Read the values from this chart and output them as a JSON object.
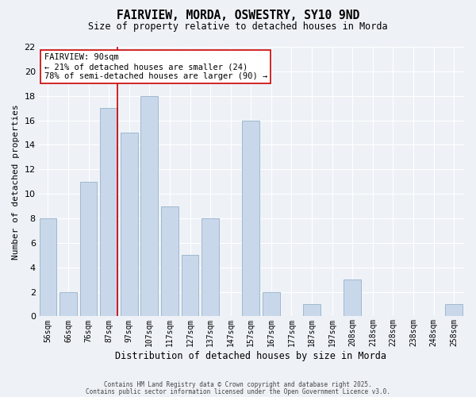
{
  "title": "FAIRVIEW, MORDA, OSWESTRY, SY10 9ND",
  "subtitle": "Size of property relative to detached houses in Morda",
  "xlabel": "Distribution of detached houses by size in Morda",
  "ylabel": "Number of detached properties",
  "bar_labels": [
    "56sqm",
    "66sqm",
    "76sqm",
    "87sqm",
    "97sqm",
    "107sqm",
    "117sqm",
    "127sqm",
    "137sqm",
    "147sqm",
    "157sqm",
    "167sqm",
    "177sqm",
    "187sqm",
    "197sqm",
    "208sqm",
    "218sqm",
    "228sqm",
    "238sqm",
    "248sqm",
    "258sqm"
  ],
  "bar_values": [
    8,
    2,
    11,
    17,
    15,
    18,
    9,
    5,
    8,
    0,
    16,
    2,
    0,
    1,
    0,
    3,
    0,
    0,
    0,
    0,
    1
  ],
  "bar_color": "#c8d8ea",
  "bar_edge_color": "#a0b8d0",
  "ylim": [
    0,
    22
  ],
  "yticks": [
    0,
    2,
    4,
    6,
    8,
    10,
    12,
    14,
    16,
    18,
    20,
    22
  ],
  "fairview_line_color": "#cc0000",
  "annotation_title": "FAIRVIEW: 90sqm",
  "annotation_line2": "← 21% of detached houses are smaller (24)",
  "annotation_line3": "78% of semi-detached houses are larger (90) →",
  "bg_color": "#eef2f7",
  "grid_color": "#ffffff",
  "footer_line1": "Contains HM Land Registry data © Crown copyright and database right 2025.",
  "footer_line2": "Contains public sector information licensed under the Open Government Licence v3.0."
}
